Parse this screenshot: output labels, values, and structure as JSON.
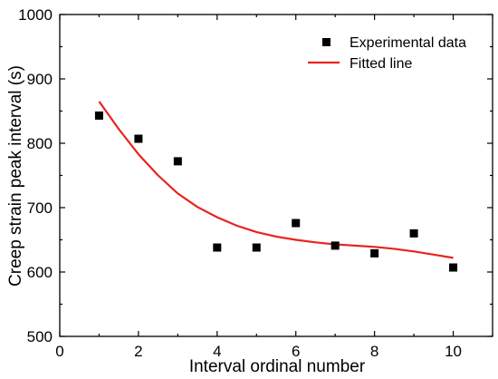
{
  "chart_data": {
    "type": "scatter",
    "xlabel": "Interval ordinal number",
    "ylabel": "Creep strain peak interval (s)",
    "xlim": [
      0,
      11
    ],
    "ylim": [
      500,
      1000
    ],
    "xticks": [
      0,
      2,
      4,
      6,
      8,
      10
    ],
    "yticks": [
      500,
      600,
      700,
      800,
      900,
      1000
    ],
    "grid": false,
    "legend_position": "top-right",
    "series": [
      {
        "name": "Experimental data",
        "kind": "scatter",
        "marker": "square",
        "color": "#000000",
        "x": [
          1,
          2,
          3,
          4,
          5,
          6,
          7,
          8,
          9,
          10
        ],
        "y": [
          843,
          807,
          772,
          638,
          638,
          676,
          641,
          629,
          660,
          607
        ]
      },
      {
        "name": "Fitted line",
        "kind": "line",
        "color": "#e8231f",
        "x": [
          1,
          1.5,
          2,
          2.5,
          3,
          3.5,
          4,
          4.5,
          5,
          5.5,
          6,
          6.5,
          7,
          7.5,
          8,
          8.5,
          9,
          9.5,
          10
        ],
        "y": [
          865,
          822,
          783,
          750,
          722,
          701,
          685,
          672,
          662,
          655,
          650,
          646,
          643,
          641,
          639,
          636,
          632,
          627,
          622
        ]
      }
    ]
  }
}
